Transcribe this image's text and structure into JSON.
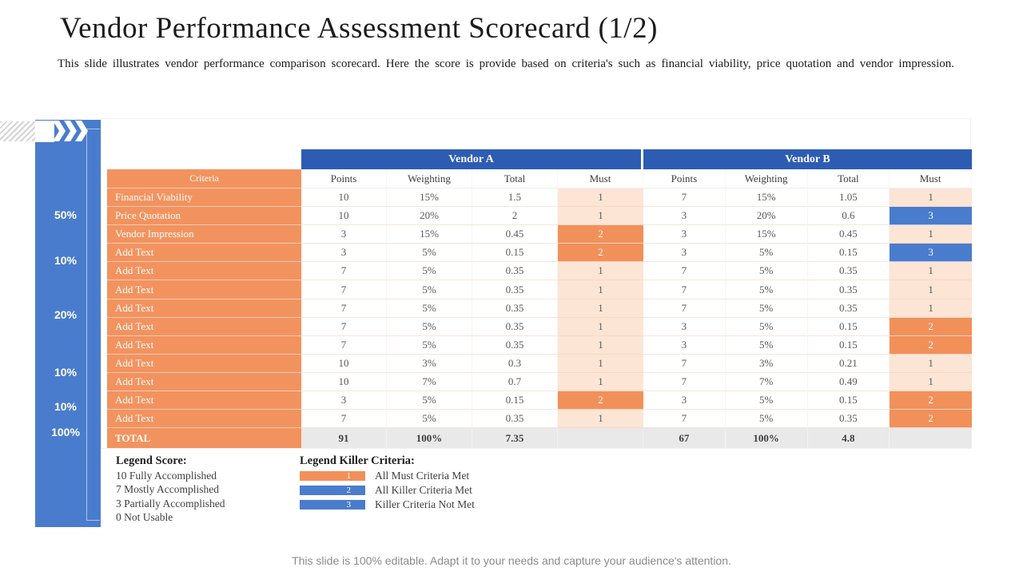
{
  "title": "Vendor Performance Assessment Scorecard (1/2)",
  "subtitle": "This slide illustrates vendor performance comparison scorecard. Here the score is provide based on criteria's such as financial viability, price quotation and vendor impression.",
  "colors": {
    "header_blue": "#2d5cb3",
    "accent_blue": "#4a7ccd",
    "accent_orange": "#f2935f",
    "must_light_peach": "#fce5d5",
    "total_gray": "#e9e9e9"
  },
  "sidebar": {
    "weights": [
      "50%",
      "10%",
      "20%",
      "10%",
      "10%",
      "100%"
    ]
  },
  "table": {
    "vendor_a_label": "Vendor A",
    "vendor_b_label": "Vendor B",
    "criteria_header": "Criteria",
    "columns": [
      "Points",
      "Weighting",
      "Total",
      "Must"
    ],
    "rows": [
      {
        "criteria": "Financial Viability",
        "a": {
          "points": "10",
          "weighting": "15%",
          "total": "1.5",
          "must": "1"
        },
        "b": {
          "points": "7",
          "weighting": "15%",
          "total": "1.05",
          "must": "1"
        }
      },
      {
        "criteria": "Price Quotation",
        "a": {
          "points": "10",
          "weighting": "20%",
          "total": "2",
          "must": "1"
        },
        "b": {
          "points": "3",
          "weighting": "20%",
          "total": "0.6",
          "must": "3"
        }
      },
      {
        "criteria": "Vendor Impression",
        "a": {
          "points": "3",
          "weighting": "15%",
          "total": "0.45",
          "must": "2"
        },
        "b": {
          "points": "3",
          "weighting": "15%",
          "total": "0.45",
          "must": "1"
        }
      },
      {
        "criteria": "Add Text",
        "a": {
          "points": "3",
          "weighting": "5%",
          "total": "0.15",
          "must": "2"
        },
        "b": {
          "points": "3",
          "weighting": "5%",
          "total": "0.15",
          "must": "3"
        }
      },
      {
        "criteria": "Add Text",
        "a": {
          "points": "7",
          "weighting": "5%",
          "total": "0.35",
          "must": "1"
        },
        "b": {
          "points": "7",
          "weighting": "5%",
          "total": "0.35",
          "must": "1"
        }
      },
      {
        "criteria": "Add Text",
        "a": {
          "points": "7",
          "weighting": "5%",
          "total": "0.35",
          "must": "1"
        },
        "b": {
          "points": "7",
          "weighting": "5%",
          "total": "0.35",
          "must": "1"
        }
      },
      {
        "criteria": "Add Text",
        "a": {
          "points": "7",
          "weighting": "5%",
          "total": "0.35",
          "must": "1"
        },
        "b": {
          "points": "7",
          "weighting": "5%",
          "total": "0.35",
          "must": "1"
        }
      },
      {
        "criteria": "Add Text",
        "a": {
          "points": "7",
          "weighting": "5%",
          "total": "0.35",
          "must": "1"
        },
        "b": {
          "points": "3",
          "weighting": "5%",
          "total": "0.15",
          "must": "2"
        }
      },
      {
        "criteria": "Add Text",
        "a": {
          "points": "7",
          "weighting": "5%",
          "total": "0.35",
          "must": "1"
        },
        "b": {
          "points": "3",
          "weighting": "5%",
          "total": "0.15",
          "must": "2"
        }
      },
      {
        "criteria": "Add Text",
        "a": {
          "points": "10",
          "weighting": "3%",
          "total": "0.3",
          "must": "1"
        },
        "b": {
          "points": "7",
          "weighting": "3%",
          "total": "0.21",
          "must": "1"
        }
      },
      {
        "criteria": "Add Text",
        "a": {
          "points": "10",
          "weighting": "7%",
          "total": "0.7",
          "must": "1"
        },
        "b": {
          "points": "7",
          "weighting": "7%",
          "total": "0.49",
          "must": "1"
        }
      },
      {
        "criteria": "Add Text",
        "a": {
          "points": "3",
          "weighting": "5%",
          "total": "0.15",
          "must": "2"
        },
        "b": {
          "points": "3",
          "weighting": "5%",
          "total": "0.15",
          "must": "2"
        }
      },
      {
        "criteria": "Add Text",
        "a": {
          "points": "7",
          "weighting": "5%",
          "total": "0.35",
          "must": "1"
        },
        "b": {
          "points": "7",
          "weighting": "5%",
          "total": "0.35",
          "must": "2"
        }
      }
    ],
    "total_row": {
      "criteria": "TOTAL",
      "a": {
        "points": "91",
        "weighting": "100%",
        "total": "7.35",
        "must": ""
      },
      "b": {
        "points": "67",
        "weighting": "100%",
        "total": "4.8",
        "must": ""
      }
    }
  },
  "legend_score": {
    "title": "Legend Score:",
    "items": [
      "10 Fully Accomplished",
      "7 Mostly Accomplished",
      "3 Partially Accomplished",
      "0 Not Usable"
    ]
  },
  "legend_killer": {
    "title": "Legend Killer Criteria:",
    "items": [
      {
        "num": "1",
        "color": "#f2905a",
        "label": "All Must Criteria  Met"
      },
      {
        "num": "2",
        "color": "#4a7ccd",
        "label": "All Killer  Criteria  Met"
      },
      {
        "num": "3",
        "color": "#4a7ccd",
        "label": "Killer  Criteria  Not Met"
      }
    ]
  },
  "footer": "This slide is 100% editable. Adapt it to your needs and capture your audience's attention."
}
